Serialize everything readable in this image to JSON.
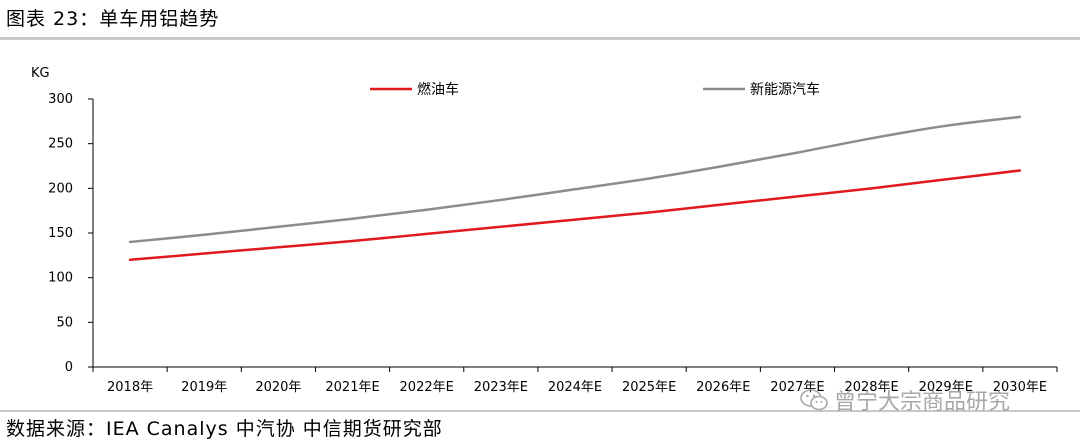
{
  "header": {
    "title": "图表 23：单车用铝趋势"
  },
  "footer": {
    "source": "数据来源：IEA Canalys 中汽协 中信期货研究部"
  },
  "watermark": {
    "text": "曾宁大宗商品研究",
    "icon": "wechat-icon"
  },
  "chart_data": {
    "type": "line",
    "title": "",
    "ylabel": "KG",
    "xlabel": "",
    "ylim": [
      0,
      300
    ],
    "yticks": [
      "0",
      "50",
      "100",
      "150",
      "200",
      "250",
      "300"
    ],
    "categories": [
      "2018年",
      "2019年",
      "2020年",
      "2021年E",
      "2022年E",
      "2023年E",
      "2024年E",
      "2025年E",
      "2026年E",
      "2027年E",
      "2028年E",
      "2029年E",
      "2030年E"
    ],
    "grid": false,
    "legend_position": "top",
    "series": [
      {
        "name": "燃油车",
        "color": "#e0191f",
        "values": [
          120,
          127,
          134,
          141,
          149,
          157,
          165,
          173,
          182,
          191,
          200,
          210,
          220
        ]
      },
      {
        "name": "新能源汽车",
        "color": "#8c8c8c",
        "values": [
          140,
          148,
          157,
          166,
          176,
          187,
          199,
          211,
          225,
          240,
          256,
          270,
          280
        ]
      }
    ]
  }
}
